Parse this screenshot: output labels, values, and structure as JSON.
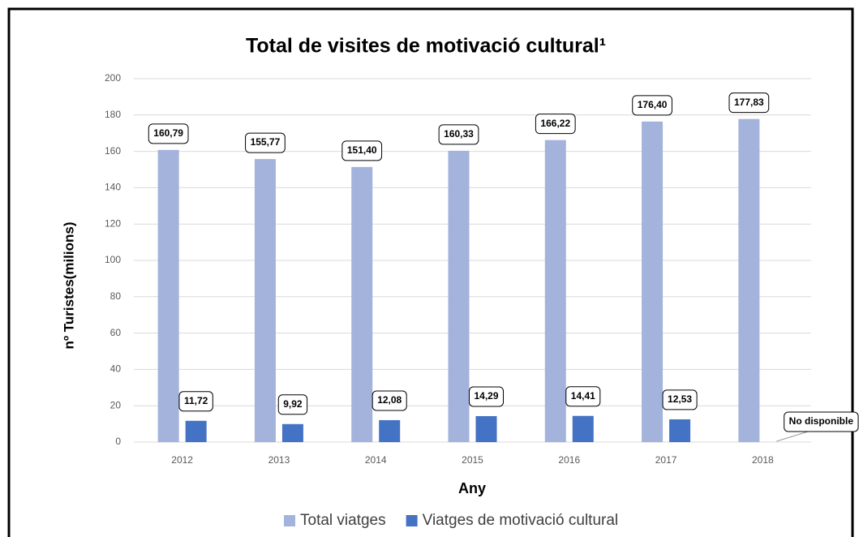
{
  "chart_data": {
    "type": "bar",
    "title": "Total de visites de motivació cultural¹",
    "y_label": "nº Turistes(milions)",
    "x_label": "Any",
    "categories": [
      "2012",
      "2013",
      "2014",
      "2015",
      "2016",
      "2017",
      "2018"
    ],
    "series": [
      {
        "name": "Total viatges",
        "color": "#a3b3dc",
        "values": [
          160.79,
          155.77,
          151.4,
          160.33,
          166.22,
          176.4,
          177.83
        ],
        "value_labels": [
          "160,79",
          "155,77",
          "151,40",
          "160,33",
          "166,22",
          "176,40",
          "177,83"
        ]
      },
      {
        "name": "Viatges de motivació cultural",
        "color": "#4472c4",
        "values": [
          11.72,
          9.92,
          12.08,
          14.29,
          14.41,
          12.53,
          null
        ],
        "value_labels": [
          "11,72",
          "9,92",
          "12,08",
          "14,29",
          "14,41",
          "12,53",
          null
        ]
      }
    ],
    "annotations": [
      "No disponible"
    ],
    "ylim": [
      0,
      200
    ],
    "yticks": [
      0,
      20,
      40,
      60,
      80,
      100,
      120,
      140,
      160,
      180,
      200
    ],
    "grid": true,
    "legend": "bottom"
  }
}
